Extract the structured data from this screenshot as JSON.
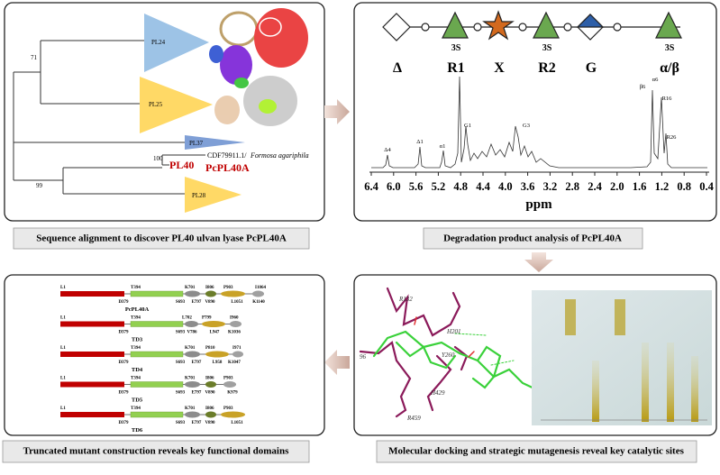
{
  "alignment": {
    "caption": "Sequence alignment to discover PL40 ulvan lyase PcPL40A",
    "clades": [
      "PL24",
      "PL25",
      "PL37",
      "PL28"
    ],
    "family": "PL40",
    "enzyme": "PcPL40A",
    "accession": "CDF79911.1/",
    "species": "Formosa agariphila",
    "bootstrap": [
      "71",
      "100",
      "99"
    ]
  },
  "spectrum": {
    "caption": "Degradation product analysis of PcPL40A",
    "sulfation": [
      "3S",
      "3S",
      "3S"
    ],
    "residues": [
      "Δ",
      "R1",
      "X",
      "R2",
      "G",
      "α/β"
    ],
    "peaks": [
      "Δ4",
      "Δ1",
      "α1",
      "G1",
      "G3",
      "α6",
      "β6",
      "R16",
      "R26"
    ],
    "ticks": [
      "6.4",
      "6.0",
      "5.6",
      "5.2",
      "4.8",
      "4.4",
      "4.0",
      "3.6",
      "3.2",
      "2.8",
      "2.4",
      "2.0",
      "1.6",
      "1.2",
      "0.8",
      "0.4"
    ],
    "unit": "ppm"
  },
  "docking": {
    "caption": "Molecular docking and strategic mutagenesis reveal key catalytic sites",
    "residues": [
      "R132",
      "H201",
      "Y260",
      "H429",
      "R459",
      "96"
    ]
  },
  "constructs": {
    "caption": "Truncated mutant construction reveals key functional domains",
    "items": [
      {
        "name": "PcPL40A",
        "top": [
          "L1",
          "T394",
          "K701",
          "I806",
          "P903",
          "I1064"
        ],
        "bottom": [
          "D379",
          "S693",
          "E797",
          "V890",
          "L1051",
          "K1140"
        ]
      },
      {
        "name": "TD3",
        "top": [
          "L1",
          "T394",
          "L702",
          "P799",
          "I960"
        ],
        "bottom": [
          "D379",
          "S693",
          "V786",
          "L947",
          "K1036"
        ]
      },
      {
        "name": "TD4",
        "top": [
          "L1",
          "T394",
          "K701",
          "P810",
          "I971"
        ],
        "bottom": [
          "D379",
          "S693",
          "E797",
          "L958",
          "K1047"
        ]
      },
      {
        "name": "TD5",
        "top": [
          "L1",
          "T394",
          "K701",
          "I806",
          "P903"
        ],
        "bottom": [
          "D379",
          "S693",
          "E797",
          "V890",
          "K979"
        ]
      },
      {
        "name": "TD6",
        "top": [
          "L1",
          "T394",
          "K701",
          "I806",
          "P903"
        ],
        "bottom": [
          "D379",
          "S693",
          "E797",
          "V890",
          "L1051"
        ]
      }
    ]
  }
}
